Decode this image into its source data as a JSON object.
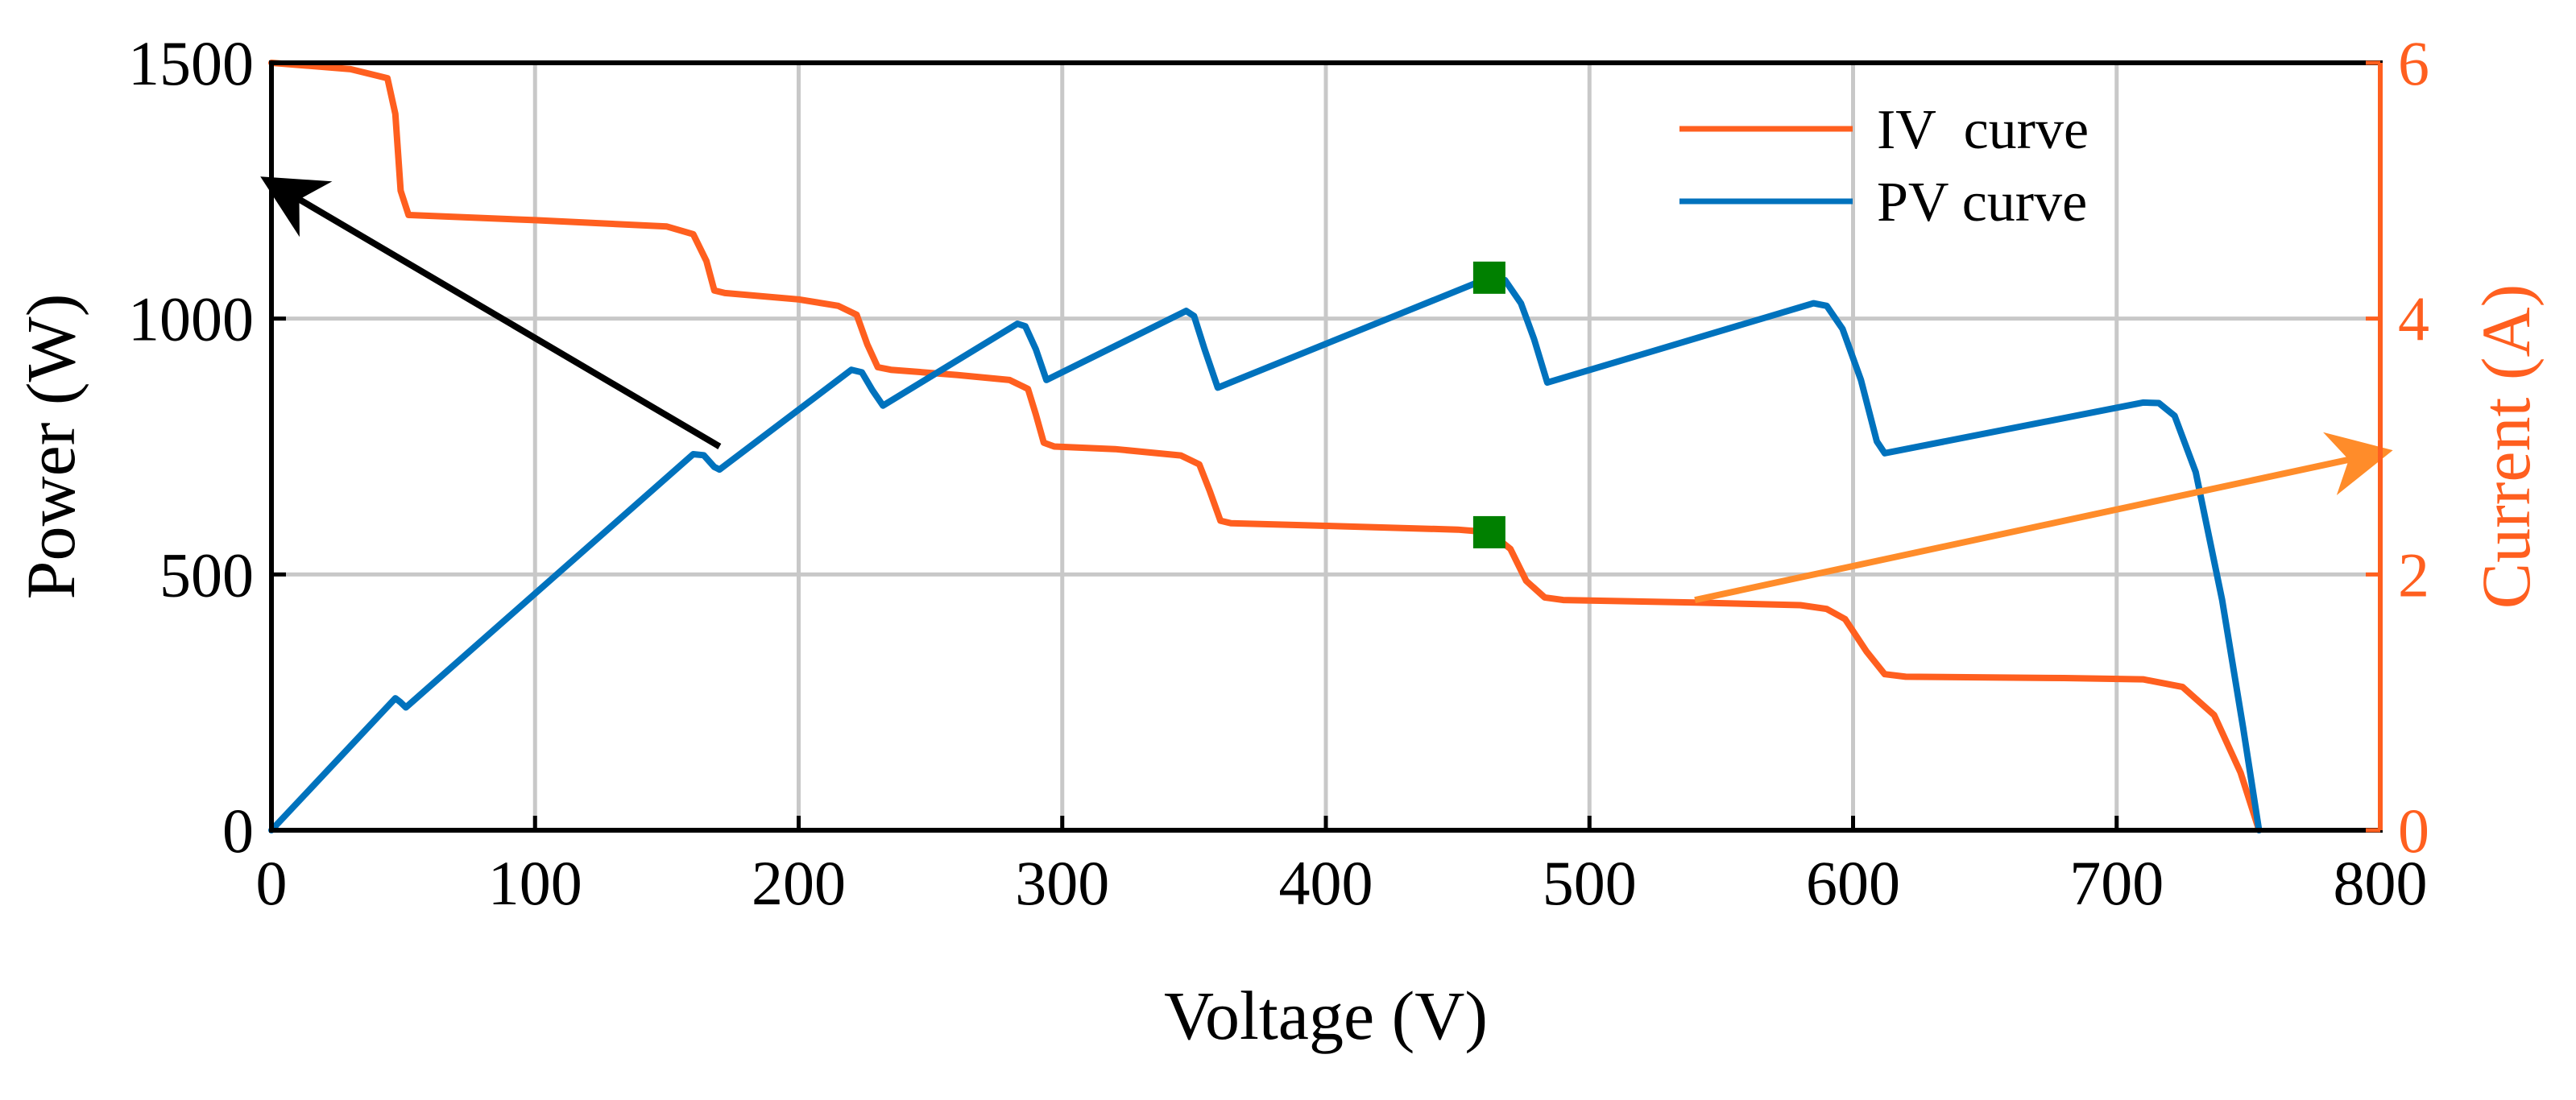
{
  "colors": {
    "iv": "#FF5F1F",
    "pv": "#0072BD",
    "grid": "#c8c8c8",
    "mpp_marker": "#008000",
    "arrow_left": "#000000",
    "arrow_right": "#FF8C2A",
    "right_axis": "#FF5F1F"
  },
  "chart_data": {
    "type": "line",
    "xlabel": "Voltage (V)",
    "ylabel_left": "Power (W)",
    "ylabel_right": "Current (A)",
    "xlim": [
      0,
      800
    ],
    "ylim_left": [
      0,
      1500
    ],
    "ylim_right": [
      0,
      6
    ],
    "x_ticks": [
      0,
      100,
      200,
      300,
      400,
      500,
      600,
      700,
      800
    ],
    "y_ticks_left": [
      0,
      500,
      1000,
      1500
    ],
    "y_ticks_right": [
      0,
      2,
      4,
      6
    ],
    "grid": true,
    "legend_position": "top-right",
    "series": [
      {
        "name": "IV  curve",
        "axis": "right",
        "x": [
          0,
          30,
          44,
          47,
          49,
          52,
          100,
          150,
          160,
          165,
          168,
          172,
          200,
          215,
          222,
          226,
          230,
          235,
          260,
          280,
          287,
          290,
          293,
          297,
          320,
          345,
          352,
          356,
          360,
          364,
          400,
          450,
          462,
          470,
          476,
          483,
          490,
          540,
          580,
          590,
          597,
          605,
          612,
          620,
          680,
          710,
          725,
          737,
          747,
          754
        ],
        "y": [
          6.0,
          5.95,
          5.88,
          5.6,
          5.0,
          4.81,
          4.77,
          4.72,
          4.66,
          4.45,
          4.22,
          4.2,
          4.15,
          4.1,
          4.03,
          3.8,
          3.62,
          3.6,
          3.56,
          3.52,
          3.45,
          3.25,
          3.03,
          3.0,
          2.98,
          2.93,
          2.86,
          2.65,
          2.42,
          2.4,
          2.38,
          2.35,
          2.33,
          2.2,
          1.95,
          1.82,
          1.8,
          1.78,
          1.76,
          1.73,
          1.65,
          1.4,
          1.22,
          1.2,
          1.19,
          1.18,
          1.12,
          0.9,
          0.45,
          0.0
        ]
      },
      {
        "name": "PV curve",
        "axis": "left",
        "x": [
          0,
          47,
          49,
          51,
          160,
          164,
          168,
          170,
          220,
          224,
          228,
          232,
          283,
          286,
          290,
          294,
          347,
          350,
          354,
          359,
          462,
          468,
          474,
          479,
          484,
          585,
          590,
          596,
          603,
          609,
          612,
          710,
          716,
          722,
          730,
          740,
          748,
          754
        ],
        "y": [
          0,
          258,
          250,
          240,
          735,
          733,
          710,
          705,
          900,
          895,
          860,
          830,
          990,
          985,
          940,
          880,
          1015,
          1005,
          940,
          865,
          1080,
          1075,
          1030,
          960,
          875,
          1030,
          1025,
          980,
          880,
          760,
          737,
          836,
          835,
          810,
          700,
          450,
          200,
          0
        ]
      }
    ],
    "markers": [
      {
        "label": "MPP power",
        "x": 462,
        "y": 1080,
        "axis": "left"
      },
      {
        "label": "MPP current",
        "x": 462,
        "y": 2.33,
        "axis": "right"
      }
    ],
    "annotations": [
      {
        "type": "arrow",
        "from": [
          170,
          750
        ],
        "to": [
          0,
          1265
        ],
        "axis": "left",
        "meaning": "points to Power axis"
      },
      {
        "type": "arrow",
        "from": [
          540,
          1.8
        ],
        "to": [
          800,
          2.95
        ],
        "axis": "right",
        "meaning": "points to Current axis"
      }
    ]
  }
}
